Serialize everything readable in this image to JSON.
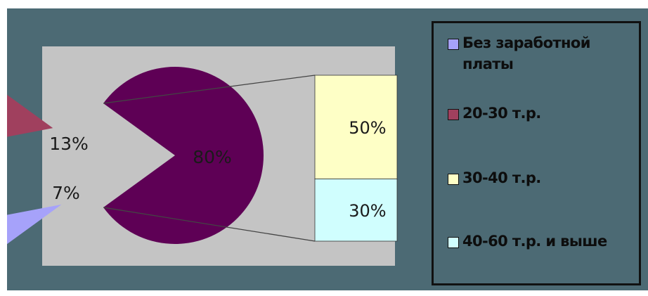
{
  "colors": {
    "background": "#4c6a74",
    "plot_area": "#c4c4c4",
    "main_slice": "#5e0055",
    "slice_20_30": "#a0405e",
    "slice_none": "#a6a2fa",
    "bar_30_40": "#feffc6",
    "bar_40_60": "#d0fefe",
    "connector": "#444444",
    "label_text": "#1a1a1a"
  },
  "chart_data": {
    "type": "pie",
    "subtype": "bar-of-pie",
    "slices": [
      {
        "label": "80%",
        "value": 80,
        "color_key": "main_slice"
      },
      {
        "label": "13%",
        "value": 13,
        "color_key": "slice_20_30"
      },
      {
        "label": "7%",
        "value": 7,
        "color_key": "slice_none"
      }
    ],
    "stack": [
      {
        "label": "50%",
        "value": 50,
        "color_key": "bar_30_40"
      },
      {
        "label": "30%",
        "value": 30,
        "color_key": "bar_40_60"
      }
    ],
    "legend_position": "right",
    "legend": [
      {
        "text": "Без заработной платы",
        "color_key": "slice_none"
      },
      {
        "text": "20-30 т.р.",
        "color_key": "slice_20_30"
      },
      {
        "text": "30-40 т.р.",
        "color_key": "bar_30_40"
      },
      {
        "text": "40-60 т.р. и выше",
        "color_key": "bar_40_60"
      }
    ]
  }
}
